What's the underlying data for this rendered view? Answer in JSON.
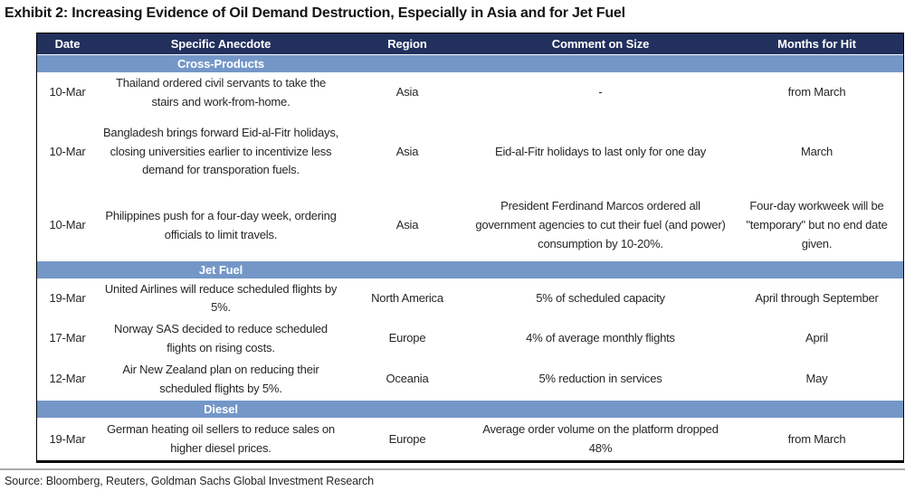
{
  "title": "Exhibit 2: Increasing Evidence of Oil Demand Destruction, Especially in Asia and for Jet Fuel",
  "source": "Source: Bloomberg, Reuters, Goldman Sachs Global Investment Research",
  "colors": {
    "header_bg": "#22305E",
    "section_bg": "#7497C8",
    "header_text": "#FFFFFF",
    "body_text": "#262626",
    "border": "#000000",
    "rule": "#ABABAB"
  },
  "table": {
    "columns": [
      "Date",
      "Specific Anecdote",
      "Region",
      "Comment on Size",
      "Months for Hit"
    ],
    "sections": [
      {
        "label": "Cross-Products",
        "rows": [
          {
            "date": "10-Mar",
            "anecdote": "Thailand ordered civil servants to take the stairs and work-from-home.",
            "region": "Asia",
            "comment": "-",
            "months": "from March"
          },
          {
            "date": "10-Mar",
            "anecdote": "Bangladesh brings forward Eid-al-Fitr holidays, closing universities earlier to incentivize less demand for transporation fuels.",
            "region": "Asia",
            "comment": "Eid-al-Fitr holidays to last only for one day",
            "months": "March"
          },
          {
            "date": "10-Mar",
            "anecdote": "Philippines push for a four-day week, ordering officials to limit travels.",
            "region": "Asia",
            "comment": "President Ferdinand Marcos ordered all government agencies to cut their fuel (and power) consumption by 10-20%.",
            "months": "Four-day workweek will be \"temporary\" but no end date given."
          }
        ]
      },
      {
        "label": "Jet Fuel",
        "rows": [
          {
            "date": "19-Mar",
            "anecdote": "United Airlines will reduce scheduled flights by 5%.",
            "region": "North America",
            "comment": "5% of scheduled capacity",
            "months": "April through September"
          },
          {
            "date": "17-Mar",
            "anecdote": "Norway SAS decided to reduce scheduled flights on rising costs.",
            "region": "Europe",
            "comment": "4% of average monthly flights",
            "months": "April"
          },
          {
            "date": "12-Mar",
            "anecdote": "Air New Zealand plan on reducing their scheduled flights by 5%.",
            "region": "Oceania",
            "comment": "5% reduction in services",
            "months": "May"
          }
        ]
      },
      {
        "label": "Diesel",
        "rows": [
          {
            "date": "19-Mar",
            "anecdote": "German heating oil sellers to reduce sales on higher diesel prices.",
            "region": "Europe",
            "comment": "Average order volume on the platform dropped 48%",
            "months": "from March"
          }
        ]
      }
    ]
  }
}
